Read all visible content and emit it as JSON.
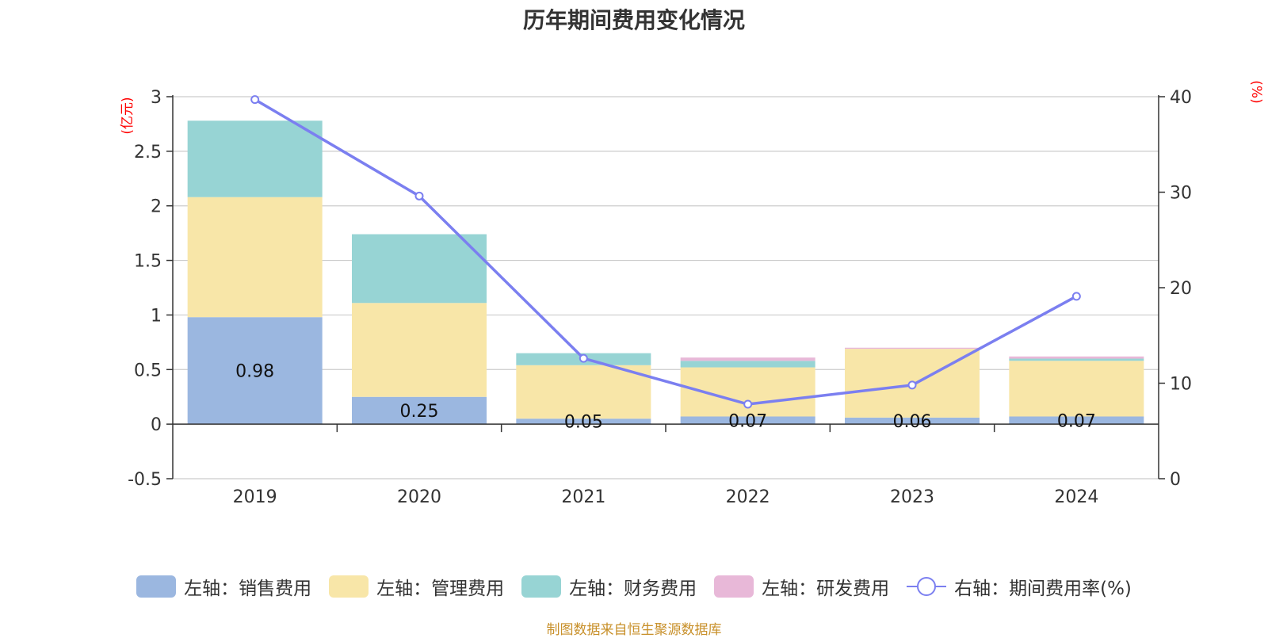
{
  "chart_data": {
    "type": "bar",
    "title": "历年期间费用变化情况",
    "categories": [
      "2019",
      "2020",
      "2021",
      "2022",
      "2023",
      "2024"
    ],
    "stacked": true,
    "series": [
      {
        "name": "左轴：销售费用",
        "axis": "left",
        "color": "#9bb7e0",
        "values": [
          0.98,
          0.25,
          0.05,
          0.07,
          0.06,
          0.07
        ]
      },
      {
        "name": "左轴：管理费用",
        "axis": "left",
        "color": "#f8e6a8",
        "values": [
          1.1,
          0.86,
          0.49,
          0.45,
          0.63,
          0.51
        ]
      },
      {
        "name": "左轴：财务费用",
        "axis": "left",
        "color": "#97d4d4",
        "values": [
          0.7,
          0.63,
          0.11,
          0.06,
          0.0,
          0.02
        ]
      },
      {
        "name": "左轴：研发费用",
        "axis": "left",
        "color": "#e8b8d8",
        "values": [
          0.0,
          0.0,
          0.0,
          0.03,
          0.01,
          0.02
        ]
      },
      {
        "name": "右轴：期间费用率(%)",
        "axis": "right",
        "type": "line",
        "color": "#7b7ff0",
        "values": [
          39.7,
          29.6,
          12.6,
          7.8,
          9.8,
          19.1
        ]
      }
    ],
    "data_labels": [
      "0.98",
      "0.25",
      "0.05",
      "0.07",
      "0.06",
      "0.07"
    ],
    "y_left": {
      "unit": "(亿元)",
      "ylim": [
        -0.5,
        3
      ],
      "ticks": [
        "-0.5",
        "0",
        "0.5",
        "1",
        "1.5",
        "2",
        "2.5",
        "3"
      ]
    },
    "y_right": {
      "unit": "(%)",
      "ylim": [
        0,
        40
      ],
      "ticks": [
        "0",
        "10",
        "20",
        "30",
        "40"
      ]
    },
    "grid": true,
    "legend_position": "bottom"
  },
  "source_text": "制图数据来自恒生聚源数据库",
  "colors": {
    "title": "#333333",
    "axis_text": "#333333",
    "unit_text": "#ff0000",
    "source_text": "#c8902a",
    "grid": "#cccccc"
  }
}
